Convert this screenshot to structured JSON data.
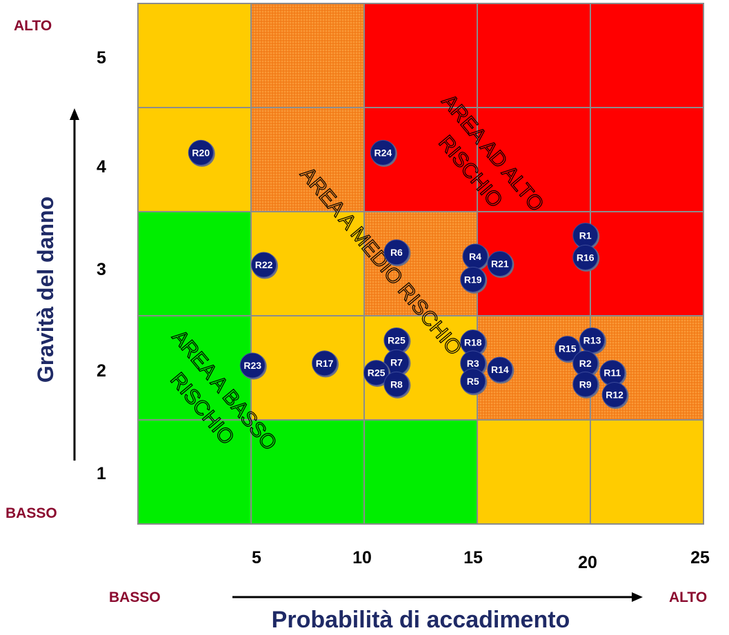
{
  "chart_data": {
    "type": "scatter",
    "title": "",
    "xlabel": "Probabilità di accadimento",
    "ylabel": "Gravità del danno",
    "xlim": [
      0,
      25
    ],
    "ylim": [
      0.5,
      5.5
    ],
    "x_ticks": [
      "5",
      "10",
      "15",
      "20",
      "25"
    ],
    "y_ticks": [
      "1",
      "2",
      "3",
      "4",
      "5"
    ],
    "x_low_label": "BASSO",
    "x_high_label": "ALTO",
    "y_low_label": "BASSO",
    "y_high_label": "ALTO",
    "grid": [
      [
        "yellow",
        "orange",
        "red",
        "red",
        "red"
      ],
      [
        "yellow",
        "orange",
        "red",
        "red",
        "red"
      ],
      [
        "green",
        "yellow",
        "orange",
        "red",
        "red"
      ],
      [
        "green",
        "yellow",
        "yellow",
        "orange",
        "orange"
      ],
      [
        "green",
        "green",
        "green",
        "yellow",
        "yellow"
      ]
    ],
    "areas": [
      {
        "line1": "AREA A BASSO",
        "line2": "RISCHIO"
      },
      {
        "line1": "AREA A MEDIO RISCHIO",
        "line2": ""
      },
      {
        "line1": "AREA AD ALTO",
        "line2": "RISCHIO"
      }
    ],
    "points": [
      {
        "label": "R20",
        "x": 2.8,
        "y": 4.05
      },
      {
        "label": "R24",
        "x": 10.9,
        "y": 4.05
      },
      {
        "label": "R22",
        "x": 5.6,
        "y": 2.98
      },
      {
        "label": "R6",
        "x": 11.5,
        "y": 3.1
      },
      {
        "label": "R4",
        "x": 15.0,
        "y": 3.06
      },
      {
        "label": "R21",
        "x": 16.1,
        "y": 2.99
      },
      {
        "label": "R19",
        "x": 14.9,
        "y": 2.84
      },
      {
        "label": "R1",
        "x": 19.9,
        "y": 3.26
      },
      {
        "label": "R16",
        "x": 19.9,
        "y": 3.05
      },
      {
        "label": "R23",
        "x": 5.1,
        "y": 2.02
      },
      {
        "label": "R17",
        "x": 8.3,
        "y": 2.04
      },
      {
        "label": "R25",
        "x": 11.5,
        "y": 2.26
      },
      {
        "label": "R7",
        "x": 11.5,
        "y": 2.05
      },
      {
        "label": "R25",
        "x": 10.6,
        "y": 1.95
      },
      {
        "label": "R8",
        "x": 11.5,
        "y": 1.84
      },
      {
        "label": "R18",
        "x": 14.9,
        "y": 2.24
      },
      {
        "label": "R3",
        "x": 14.9,
        "y": 2.04
      },
      {
        "label": "R5",
        "x": 14.9,
        "y": 1.87
      },
      {
        "label": "R14",
        "x": 16.1,
        "y": 1.98
      },
      {
        "label": "R15",
        "x": 19.1,
        "y": 2.18
      },
      {
        "label": "R13",
        "x": 20.2,
        "y": 2.26
      },
      {
        "label": "R2",
        "x": 19.9,
        "y": 2.04
      },
      {
        "label": "R11",
        "x": 21.1,
        "y": 1.95
      },
      {
        "label": "R9",
        "x": 19.9,
        "y": 1.84
      },
      {
        "label": "R12",
        "x": 21.2,
        "y": 1.74
      }
    ]
  },
  "colors": {
    "red": "#ff0000",
    "orange": "#f7861f",
    "yellow": "#ffcc00",
    "green": "#00ee00",
    "grid_line": "#8c8c8c",
    "point_fill": "#0f1e7a",
    "axis_title": "#1f2a66",
    "level_label": "#8b0a2f"
  }
}
